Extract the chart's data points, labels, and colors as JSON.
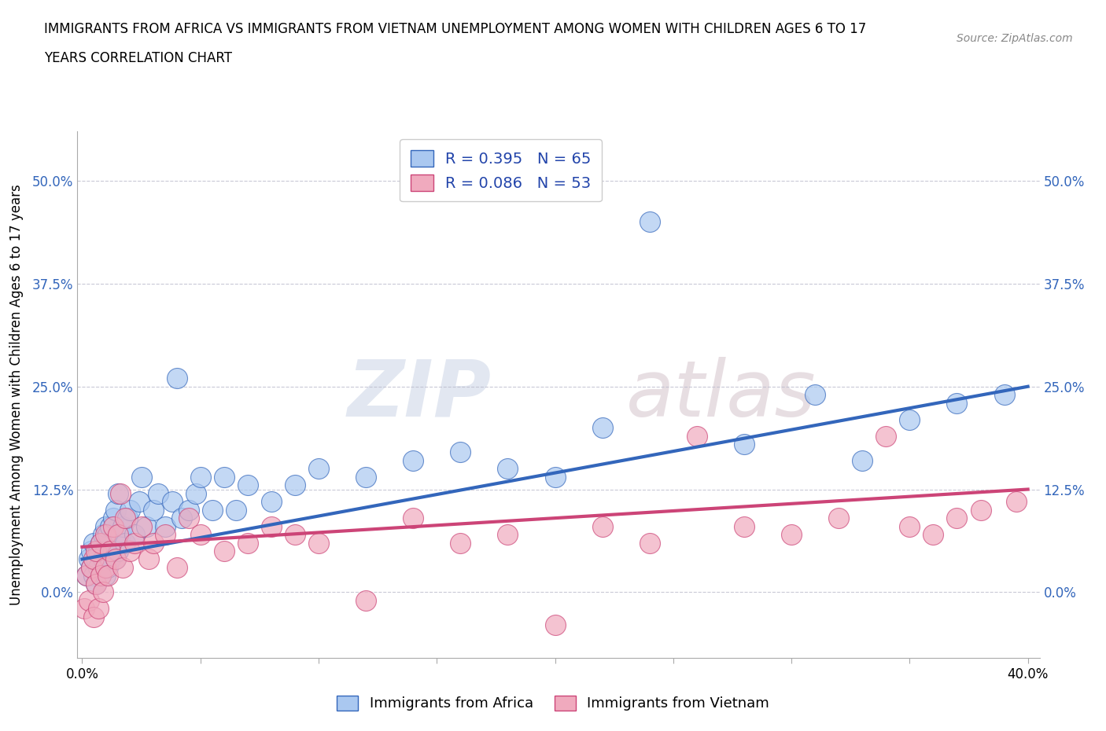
{
  "title_line1": "IMMIGRANTS FROM AFRICA VS IMMIGRANTS FROM VIETNAM UNEMPLOYMENT AMONG WOMEN WITH CHILDREN AGES 6 TO 17",
  "title_line2": "YEARS CORRELATION CHART",
  "source": "Source: ZipAtlas.com",
  "ylabel": "Unemployment Among Women with Children Ages 6 to 17 years",
  "xlim": [
    -0.002,
    0.405
  ],
  "ylim": [
    -0.08,
    0.56
  ],
  "yticks": [
    0.0,
    0.125,
    0.25,
    0.375,
    0.5
  ],
  "ytick_labels": [
    "0.0%",
    "12.5%",
    "25.0%",
    "37.5%",
    "50.0%"
  ],
  "xticks": [
    0.0,
    0.05,
    0.1,
    0.15,
    0.2,
    0.25,
    0.3,
    0.35,
    0.4
  ],
  "xtick_labels": [
    "0.0%",
    "",
    "",
    "",
    "",
    "",
    "",
    "",
    "40.0%"
  ],
  "africa_R": 0.395,
  "africa_N": 65,
  "vietnam_R": 0.086,
  "vietnam_N": 53,
  "africa_color": "#aac8f0",
  "vietnam_color": "#f0aabe",
  "africa_line_color": "#3366bb",
  "vietnam_line_color": "#cc4477",
  "legend_text_color": "#2244aa",
  "watermark_zip": "ZIP",
  "watermark_atlas": "atlas",
  "africa_scatter_x": [
    0.002,
    0.003,
    0.004,
    0.004,
    0.005,
    0.005,
    0.006,
    0.006,
    0.007,
    0.007,
    0.008,
    0.008,
    0.009,
    0.009,
    0.01,
    0.01,
    0.01,
    0.011,
    0.011,
    0.012,
    0.012,
    0.013,
    0.013,
    0.014,
    0.014,
    0.015,
    0.015,
    0.016,
    0.017,
    0.018,
    0.019,
    0.02,
    0.022,
    0.024,
    0.025,
    0.027,
    0.03,
    0.032,
    0.035,
    0.038,
    0.04,
    0.042,
    0.045,
    0.048,
    0.05,
    0.055,
    0.06,
    0.065,
    0.07,
    0.08,
    0.09,
    0.1,
    0.12,
    0.14,
    0.16,
    0.18,
    0.2,
    0.22,
    0.24,
    0.28,
    0.31,
    0.33,
    0.35,
    0.37,
    0.39
  ],
  "africa_scatter_y": [
    0.02,
    0.04,
    0.03,
    0.05,
    0.02,
    0.06,
    0.01,
    0.04,
    0.03,
    0.05,
    0.02,
    0.06,
    0.04,
    0.07,
    0.02,
    0.05,
    0.08,
    0.03,
    0.07,
    0.04,
    0.08,
    0.05,
    0.09,
    0.04,
    0.1,
    0.05,
    0.12,
    0.07,
    0.08,
    0.06,
    0.09,
    0.1,
    0.07,
    0.11,
    0.14,
    0.08,
    0.1,
    0.12,
    0.08,
    0.11,
    0.26,
    0.09,
    0.1,
    0.12,
    0.14,
    0.1,
    0.14,
    0.1,
    0.13,
    0.11,
    0.13,
    0.15,
    0.14,
    0.16,
    0.17,
    0.15,
    0.14,
    0.2,
    0.45,
    0.18,
    0.24,
    0.16,
    0.21,
    0.23,
    0.24
  ],
  "vietnam_scatter_x": [
    0.001,
    0.002,
    0.003,
    0.004,
    0.005,
    0.005,
    0.006,
    0.006,
    0.007,
    0.008,
    0.008,
    0.009,
    0.01,
    0.01,
    0.011,
    0.012,
    0.013,
    0.014,
    0.015,
    0.016,
    0.017,
    0.018,
    0.02,
    0.022,
    0.025,
    0.028,
    0.03,
    0.035,
    0.04,
    0.045,
    0.05,
    0.06,
    0.07,
    0.08,
    0.09,
    0.1,
    0.12,
    0.14,
    0.16,
    0.18,
    0.2,
    0.22,
    0.24,
    0.26,
    0.28,
    0.3,
    0.32,
    0.34,
    0.35,
    0.36,
    0.37,
    0.38,
    0.395
  ],
  "vietnam_scatter_y": [
    -0.02,
    0.02,
    -0.01,
    0.03,
    -0.03,
    0.04,
    0.01,
    0.05,
    -0.02,
    0.02,
    0.06,
    0.0,
    0.03,
    0.07,
    0.02,
    0.05,
    0.08,
    0.04,
    0.07,
    0.12,
    0.03,
    0.09,
    0.05,
    0.06,
    0.08,
    0.04,
    0.06,
    0.07,
    0.03,
    0.09,
    0.07,
    0.05,
    0.06,
    0.08,
    0.07,
    0.06,
    -0.01,
    0.09,
    0.06,
    0.07,
    -0.04,
    0.08,
    0.06,
    0.19,
    0.08,
    0.07,
    0.09,
    0.19,
    0.08,
    0.07,
    0.09,
    0.1,
    0.11
  ],
  "africa_regline_x": [
    0.0,
    0.4
  ],
  "africa_regline_y": [
    0.04,
    0.25
  ],
  "vietnam_regline_x": [
    0.0,
    0.4
  ],
  "vietnam_regline_y": [
    0.055,
    0.125
  ]
}
